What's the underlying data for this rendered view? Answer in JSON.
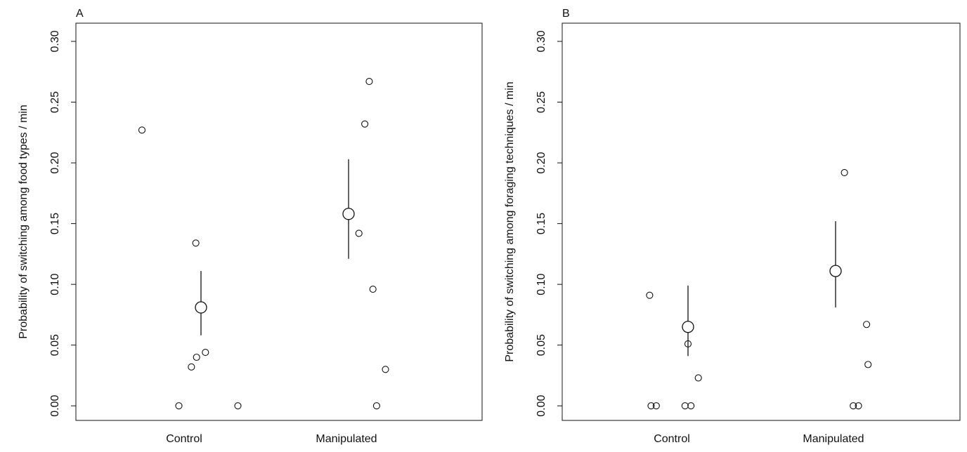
{
  "chart_data": [
    {
      "type": "scatter",
      "panel_label": "A",
      "title": "",
      "xlabel": "",
      "ylabel": "Probability of switching among food types / min",
      "categories": [
        "Control",
        "Manipulated"
      ],
      "ylim": [
        -0.012,
        0.315
      ],
      "yticks": [
        0.0,
        0.05,
        0.1,
        0.15,
        0.2,
        0.25,
        0.3
      ],
      "ytick_labels": [
        "0.00",
        "0.05",
        "0.10",
        "0.15",
        "0.20",
        "0.25",
        "0.30"
      ],
      "grid": false,
      "legend": "none",
      "points": [
        {
          "x": 0.6,
          "y": 0.227
        },
        {
          "x": 0.85,
          "y": 0.0
        },
        {
          "x": 0.935,
          "y": 0.032
        },
        {
          "x": 0.965,
          "y": 0.134
        },
        {
          "x": 0.97,
          "y": 0.04
        },
        {
          "x": 1.03,
          "y": 0.044
        },
        {
          "x": 1.25,
          "y": 0.0
        },
        {
          "x": 2.07,
          "y": 0.142
        },
        {
          "x": 2.11,
          "y": 0.232
        },
        {
          "x": 2.14,
          "y": 0.267
        },
        {
          "x": 2.165,
          "y": 0.096
        },
        {
          "x": 2.19,
          "y": 0.0
        },
        {
          "x": 2.25,
          "y": 0.03
        }
      ],
      "means": [
        {
          "x": 1.0,
          "y": 0.081,
          "low": 0.058,
          "high": 0.111
        },
        {
          "x": 2.0,
          "y": 0.158,
          "low": 0.121,
          "high": 0.203
        }
      ]
    },
    {
      "type": "scatter",
      "panel_label": "B",
      "title": "",
      "xlabel": "",
      "ylabel": "Probability of switching among foraging techniques / min",
      "categories": [
        "Control",
        "Manipulated"
      ],
      "ylim": [
        -0.012,
        0.315
      ],
      "yticks": [
        0.0,
        0.05,
        0.1,
        0.15,
        0.2,
        0.25,
        0.3
      ],
      "ytick_labels": [
        "0.00",
        "0.05",
        "0.10",
        "0.15",
        "0.20",
        "0.25",
        "0.30"
      ],
      "grid": false,
      "legend": "none",
      "points": [
        {
          "x": 0.74,
          "y": 0.091
        },
        {
          "x": 0.75,
          "y": 0.0
        },
        {
          "x": 0.785,
          "y": 0.0
        },
        {
          "x": 0.98,
          "y": 0.0
        },
        {
          "x": 1.0,
          "y": 0.051
        },
        {
          "x": 1.02,
          "y": 0.0
        },
        {
          "x": 1.07,
          "y": 0.023
        },
        {
          "x": 2.06,
          "y": 0.192
        },
        {
          "x": 2.12,
          "y": 0.0
        },
        {
          "x": 2.155,
          "y": 0.0
        },
        {
          "x": 2.21,
          "y": 0.067
        },
        {
          "x": 2.22,
          "y": 0.034
        }
      ],
      "means": [
        {
          "x": 1.0,
          "y": 0.065,
          "low": 0.041,
          "high": 0.099
        },
        {
          "x": 2.0,
          "y": 0.111,
          "low": 0.081,
          "high": 0.152
        }
      ]
    }
  ]
}
